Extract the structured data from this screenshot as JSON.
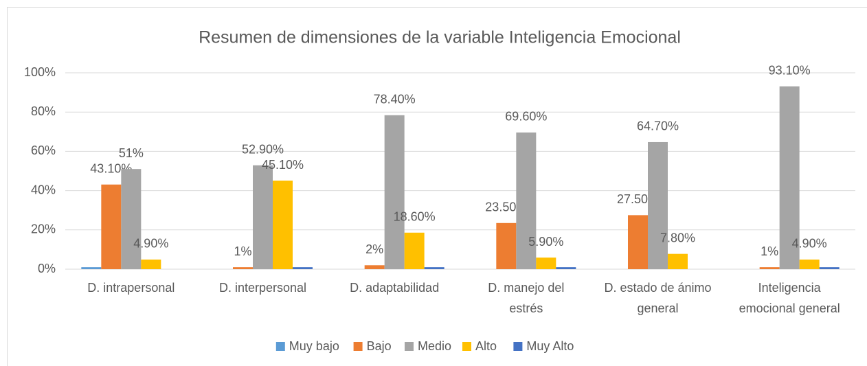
{
  "chart_data": {
    "type": "bar",
    "title": "Resumen de dimensiones de la variable Inteligencia Emocional",
    "categories": [
      "D. intrapersonal",
      "D. interpersonal",
      "D. adaptabilidad",
      "D. manejo del estrés",
      "D. estado de ánimo general",
      "Inteligencia emocional general"
    ],
    "series": [
      {
        "name": "Muy bajo",
        "color": "#5b9bd5",
        "values": [
          1,
          0,
          0,
          0,
          0,
          0
        ]
      },
      {
        "name": "Bajo",
        "color": "#ed7d31",
        "values": [
          43.1,
          1,
          2,
          23.5,
          27.5,
          1
        ],
        "value_labels": [
          "43.10%",
          "1%",
          "2%",
          "23.50%",
          "27.50%",
          "1%"
        ]
      },
      {
        "name": "Medio",
        "color": "#a5a5a5",
        "values": [
          51,
          52.9,
          78.4,
          69.6,
          64.7,
          93.1
        ],
        "value_labels": [
          "51%",
          "52.90%",
          "78.40%",
          "69.60%",
          "64.70%",
          "93.10%"
        ]
      },
      {
        "name": "Alto",
        "color": "#ffc000",
        "values": [
          4.9,
          45.1,
          18.6,
          5.9,
          7.8,
          4.9
        ],
        "value_labels": [
          "4.90%",
          "45.10%",
          "18.60%",
          "5.90%",
          "7.80%",
          "4.90%"
        ]
      },
      {
        "name": "Muy Alto",
        "color": "#4472c4",
        "values": [
          0,
          1,
          1,
          1,
          0,
          1
        ]
      }
    ],
    "ylim": [
      0,
      100
    ],
    "yticks": [
      {
        "value": 0,
        "label": "0%"
      },
      {
        "value": 20,
        "label": "20%"
      },
      {
        "value": 40,
        "label": "40%"
      },
      {
        "value": 60,
        "label": "60%"
      },
      {
        "value": 80,
        "label": "80%"
      },
      {
        "value": 100,
        "label": "100%"
      }
    ],
    "grid": true,
    "legend": "bottom"
  }
}
